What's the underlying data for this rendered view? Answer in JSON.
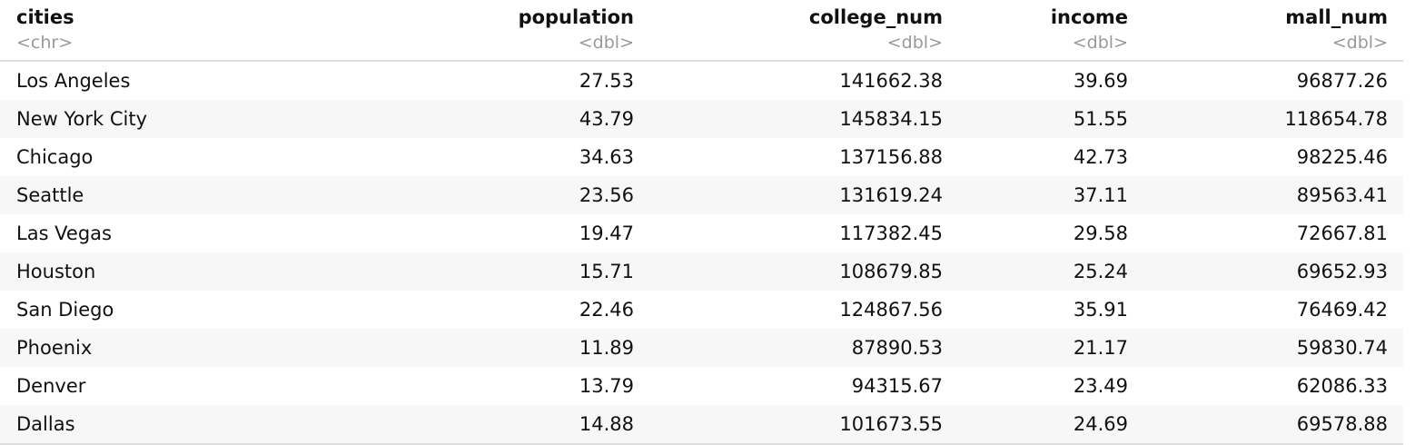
{
  "table": {
    "columns": [
      {
        "name": "cities",
        "type": "<chr>"
      },
      {
        "name": "population",
        "type": "<dbl>"
      },
      {
        "name": "college_num",
        "type": "<dbl>"
      },
      {
        "name": "income",
        "type": "<dbl>"
      },
      {
        "name": "mall_num",
        "type": "<dbl>"
      }
    ],
    "rows": [
      [
        "Los Angeles",
        "27.53",
        "141662.38",
        "39.69",
        "96877.26"
      ],
      [
        "New York City",
        "43.79",
        "145834.15",
        "51.55",
        "118654.78"
      ],
      [
        "Chicago",
        "34.63",
        "137156.88",
        "42.73",
        "98225.46"
      ],
      [
        "Seattle",
        "23.56",
        "131619.24",
        "37.11",
        "89563.41"
      ],
      [
        "Las Vegas",
        "19.47",
        "117382.45",
        "29.58",
        "72667.81"
      ],
      [
        "Houston",
        "15.71",
        "108679.85",
        "25.24",
        "69652.93"
      ],
      [
        "San Diego",
        "22.46",
        "124867.56",
        "35.91",
        "76469.42"
      ],
      [
        "Phoenix",
        "11.89",
        "87890.53",
        "21.17",
        "59830.74"
      ],
      [
        "Denver",
        "13.79",
        "94315.67",
        "23.49",
        "62086.33"
      ],
      [
        "Dallas",
        "14.88",
        "101673.55",
        "24.69",
        "69578.88"
      ]
    ]
  }
}
